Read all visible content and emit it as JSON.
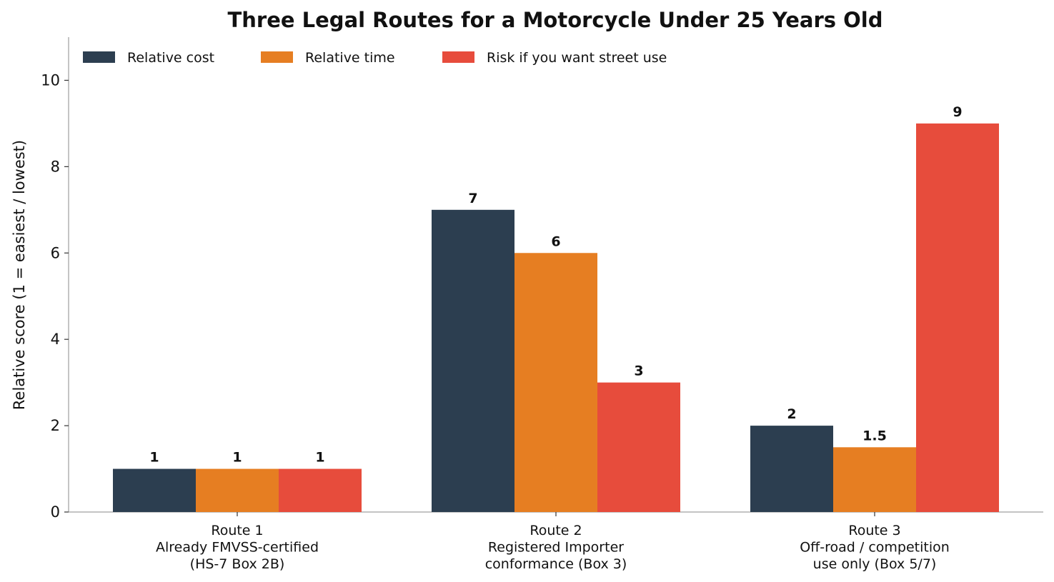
{
  "chart_data": {
    "type": "bar",
    "title": "Three Legal Routes for a Motorcycle Under 25 Years Old",
    "xlabel": "",
    "ylabel": "Relative score (1 = easiest / lowest)",
    "ylim": [
      0,
      11
    ],
    "yticks": [
      0,
      2,
      4,
      6,
      8,
      10
    ],
    "grid": false,
    "legend_position": "top-left",
    "categories": [
      [
        "Route 1",
        "Already FMVSS-certified",
        "(HS-7 Box 2B)"
      ],
      [
        "Route 2",
        "Registered Importer",
        "conformance (Box 3)"
      ],
      [
        "Route 3",
        "Off-road / competition",
        "use only (Box 5/7)"
      ]
    ],
    "series": [
      {
        "name": "Relative cost",
        "color": "#2c3e50",
        "values": [
          1,
          7,
          2
        ],
        "labels": [
          "1",
          "7",
          "2"
        ]
      },
      {
        "name": "Relative time",
        "color": "#e67e22",
        "values": [
          1,
          6,
          1.5
        ],
        "labels": [
          "1",
          "6",
          "1.5"
        ]
      },
      {
        "name": "Risk if you want street use",
        "color": "#e74c3c",
        "values": [
          1,
          3,
          9
        ],
        "labels": [
          "1",
          "3",
          "9"
        ]
      }
    ]
  }
}
